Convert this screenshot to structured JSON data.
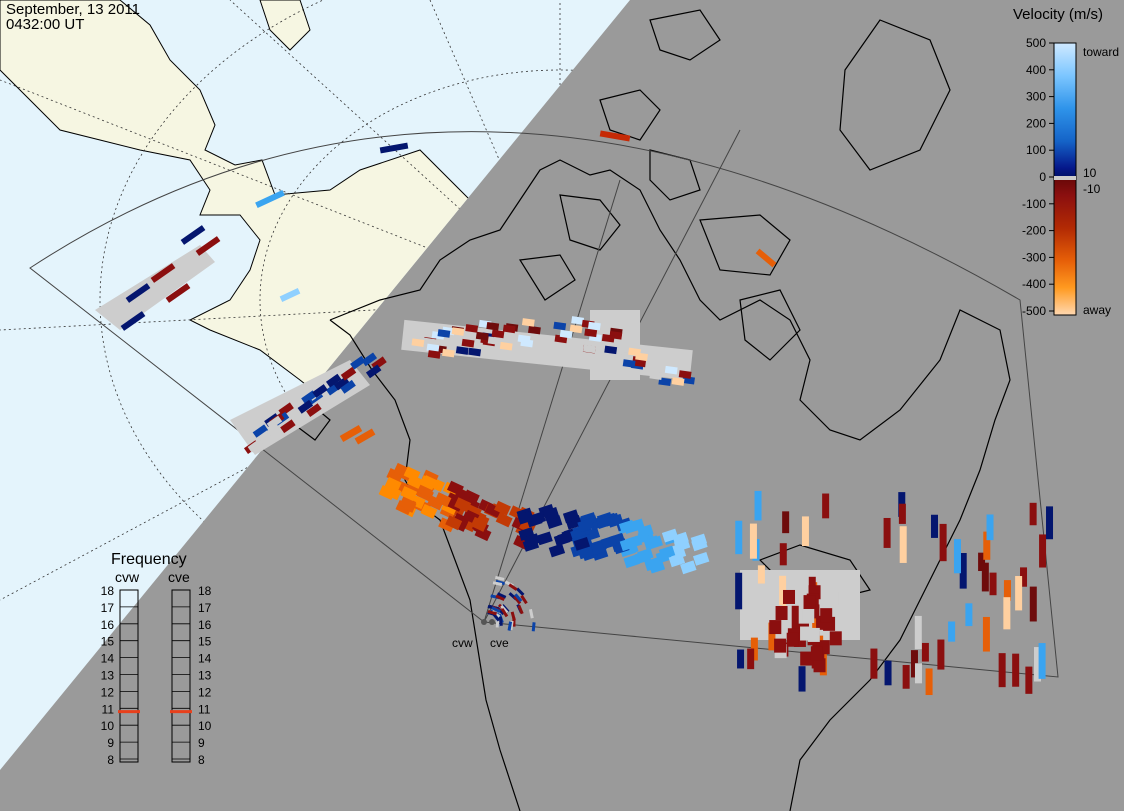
{
  "header": {
    "date": "September, 13 2011",
    "time": "0432:00 UT"
  },
  "colorbar": {
    "title": "Velocity (m/s)",
    "ticks": [
      "500",
      "400",
      "300",
      "200",
      "100",
      "0",
      "-100",
      "-200",
      "-300",
      "-400",
      "-500"
    ],
    "extra_pos": "10",
    "extra_neg": "-10",
    "label_toward": "toward",
    "label_away": "away",
    "colors": [
      "#cfe9ff",
      "#8fd0ff",
      "#3aa4f0",
      "#1673da",
      "#0b43a8",
      "#04166f",
      "#6e0c0c",
      "#8b0f0f",
      "#a82a06",
      "#e0520a",
      "#ff8a00",
      "#ffd0a0"
    ]
  },
  "frequency": {
    "title": "Frequency",
    "radars": [
      "cvw",
      "cve"
    ],
    "ticks": [
      "18",
      "17",
      "16",
      "15",
      "14",
      "13",
      "12",
      "11",
      "10",
      "9",
      "8"
    ],
    "cvw_value": 10.8,
    "cve_value": 10.8,
    "marker_color": "#e8401c"
  },
  "radar_sites": [
    "cvw",
    "cve"
  ],
  "colors": {
    "background_gray": "#9a9a9a",
    "ocean": "#e4f4fc",
    "land_alaska": "#f6f6e2",
    "ground_scatter": "#cdcdcd"
  }
}
